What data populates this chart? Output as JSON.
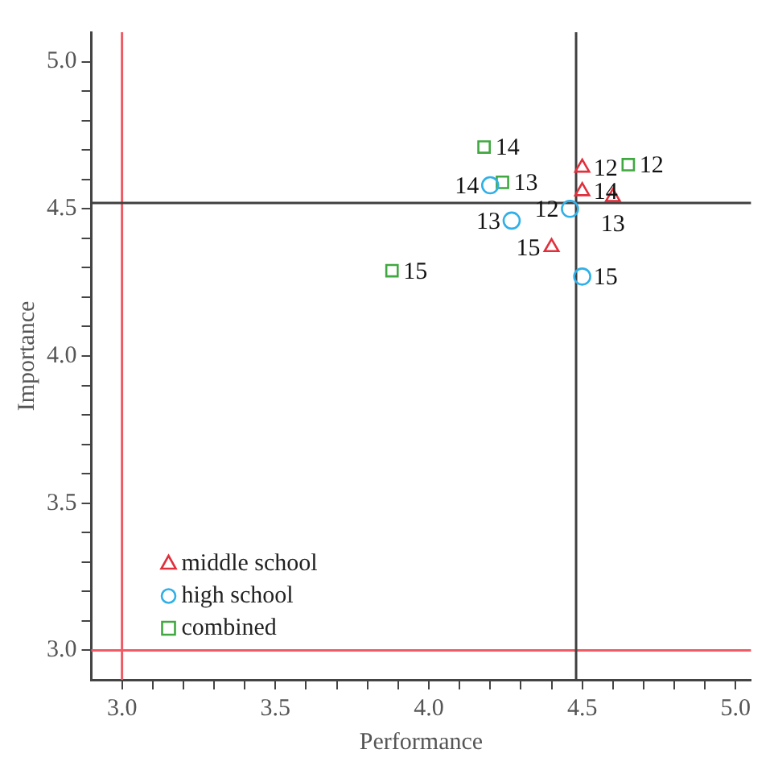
{
  "chart_data": {
    "type": "scatter",
    "xlabel": "Performance",
    "ylabel": "Importance",
    "xlim": [
      2.9,
      5.05
    ],
    "ylim": [
      2.9,
      5.1
    ],
    "xticks": [
      {
        "value": 3.0,
        "label": "3.0"
      },
      {
        "value": 3.1,
        "label": null
      },
      {
        "value": 3.2,
        "label": null
      },
      {
        "value": 3.3,
        "label": null
      },
      {
        "value": 3.4,
        "label": null
      },
      {
        "value": 3.5,
        "label": "3.5"
      },
      {
        "value": 3.6,
        "label": null
      },
      {
        "value": 3.7,
        "label": null
      },
      {
        "value": 3.8,
        "label": null
      },
      {
        "value": 3.9,
        "label": null
      },
      {
        "value": 4.0,
        "label": "4.0"
      },
      {
        "value": 4.1,
        "label": null
      },
      {
        "value": 4.2,
        "label": null
      },
      {
        "value": 4.3,
        "label": null
      },
      {
        "value": 4.4,
        "label": null
      },
      {
        "value": 4.5,
        "label": "4.5"
      },
      {
        "value": 4.6,
        "label": null
      },
      {
        "value": 4.7,
        "label": null
      },
      {
        "value": 4.8,
        "label": null
      },
      {
        "value": 4.9,
        "label": null
      },
      {
        "value": 5.0,
        "label": "5.0"
      }
    ],
    "yticks": [
      {
        "value": 3.0,
        "label": "3.0"
      },
      {
        "value": 3.1,
        "label": null
      },
      {
        "value": 3.2,
        "label": null
      },
      {
        "value": 3.3,
        "label": null
      },
      {
        "value": 3.4,
        "label": null
      },
      {
        "value": 3.5,
        "label": "3.5"
      },
      {
        "value": 3.6,
        "label": null
      },
      {
        "value": 3.7,
        "label": null
      },
      {
        "value": 3.8,
        "label": null
      },
      {
        "value": 3.9,
        "label": null
      },
      {
        "value": 4.0,
        "label": "4.0"
      },
      {
        "value": 4.1,
        "label": null
      },
      {
        "value": 4.2,
        "label": null
      },
      {
        "value": 4.3,
        "label": null
      },
      {
        "value": 4.4,
        "label": null
      },
      {
        "value": 4.5,
        "label": "4.5"
      },
      {
        "value": 4.6,
        "label": null
      },
      {
        "value": 4.7,
        "label": null
      },
      {
        "value": 4.8,
        "label": null
      },
      {
        "value": 4.9,
        "label": null
      },
      {
        "value": 5.0,
        "label": "5.0"
      }
    ],
    "grid": false,
    "legend": "bottom left",
    "series": [
      {
        "name": "middle school",
        "color": "#e0303c",
        "marker": "triangle",
        "x": [
          4.5,
          4.6,
          4.5,
          4.4
        ],
        "values": [
          4.64,
          4.54,
          4.56,
          4.37
        ]
      },
      {
        "name": "high school",
        "color": "#30b0e8",
        "marker": "circle",
        "x": [
          4.46,
          4.27,
          4.2,
          4.5
        ],
        "values": [
          4.5,
          4.46,
          4.58,
          4.27
        ]
      },
      {
        "name": "combined",
        "color": "#40a840",
        "marker": "square",
        "x": [
          4.65,
          4.24,
          4.18,
          3.88
        ],
        "values": [
          4.65,
          4.59,
          4.71,
          4.29
        ]
      }
    ],
    "annotations": [
      {
        "text": "12",
        "x": 4.5,
        "y": 4.64
      },
      {
        "text": "13",
        "x": 4.6,
        "y": 4.54
      },
      {
        "text": "14",
        "x": 4.5,
        "y": 4.56
      },
      {
        "text": "15",
        "x": 4.4,
        "y": 4.37
      },
      {
        "text": "12",
        "x": 4.46,
        "y": 4.5
      },
      {
        "text": "13",
        "x": 4.27,
        "y": 4.46
      },
      {
        "text": "14",
        "x": 4.2,
        "y": 4.58
      },
      {
        "text": "15",
        "x": 4.5,
        "y": 4.27
      },
      {
        "text": "12",
        "x": 4.65,
        "y": 4.65
      },
      {
        "text": "13",
        "x": 4.24,
        "y": 4.59
      },
      {
        "text": "14",
        "x": 4.18,
        "y": 4.71
      },
      {
        "text": "15",
        "x": 3.88,
        "y": 4.29
      }
    ],
    "ref_lines": [
      {
        "axis": "x",
        "value": 3.0,
        "color": "#f05a64"
      },
      {
        "axis": "y",
        "value": 3.0,
        "color": "#f05a64"
      },
      {
        "axis": "x",
        "value": 4.48,
        "color": "#404040"
      },
      {
        "axis": "y",
        "value": 4.52,
        "color": "#404040"
      }
    ]
  }
}
